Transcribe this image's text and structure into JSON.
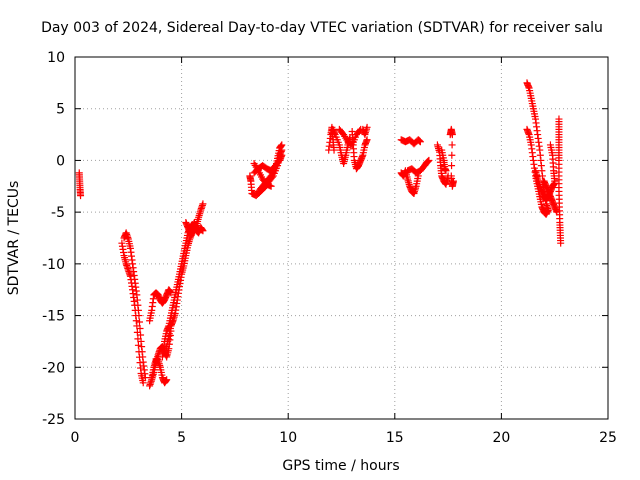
{
  "chart_data": {
    "type": "scatter",
    "title": "Day 003 of 2024, Sidereal Day-to-day VTEC variation (SDTVAR) for receiver salu",
    "xlabel": "GPS time / hours",
    "ylabel": "SDTVAR / TECUs",
    "xlim": [
      0,
      25
    ],
    "ylim": [
      -25,
      10
    ],
    "x_ticks": [
      0,
      5,
      10,
      15,
      20,
      25
    ],
    "x_tick_labels": [
      "0",
      "5",
      "10",
      "15",
      "20",
      "25"
    ],
    "y_ticks": [
      -25,
      -20,
      -15,
      -10,
      -5,
      0,
      5,
      10
    ],
    "y_tick_labels": [
      "-25",
      "-20",
      "-15",
      "-10",
      "-5",
      "0",
      "5",
      "10"
    ],
    "grid": true,
    "marker": "+",
    "color": "#ff0000",
    "tracks": [
      {
        "name": "track-1",
        "points": [
          [
            0.2,
            -1.2
          ],
          [
            0.22,
            -2.0
          ],
          [
            0.24,
            -2.8
          ],
          [
            0.26,
            -3.4
          ]
        ]
      },
      {
        "name": "track-2",
        "points": [
          [
            2.2,
            -8.0
          ],
          [
            2.3,
            -9.2
          ],
          [
            2.4,
            -10.0
          ],
          [
            2.5,
            -10.6
          ],
          [
            2.6,
            -11.2
          ],
          [
            2.7,
            -12.5
          ],
          [
            2.8,
            -14.0
          ],
          [
            2.9,
            -16.0
          ],
          [
            3.0,
            -18.5
          ],
          [
            3.1,
            -20.6
          ],
          [
            3.2,
            -21.5
          ]
        ]
      },
      {
        "name": "track-3",
        "points": [
          [
            2.3,
            -7.5
          ],
          [
            2.4,
            -7.0
          ],
          [
            2.5,
            -7.6
          ],
          [
            2.6,
            -8.5
          ],
          [
            2.7,
            -10.0
          ],
          [
            2.8,
            -11.5
          ],
          [
            2.9,
            -13.0
          ],
          [
            3.0,
            -15.0
          ],
          [
            3.1,
            -17.5
          ],
          [
            3.2,
            -19.5
          ],
          [
            3.3,
            -21.0
          ]
        ]
      },
      {
        "name": "track-4",
        "points": [
          [
            3.5,
            -21.8
          ],
          [
            3.6,
            -21.2
          ],
          [
            3.7,
            -20.5
          ],
          [
            3.8,
            -19.5
          ],
          [
            3.9,
            -18.8
          ],
          [
            4.0,
            -18.2
          ],
          [
            4.1,
            -18.0
          ],
          [
            4.2,
            -18.5
          ],
          [
            4.3,
            -19.0
          ],
          [
            4.4,
            -18.2
          ],
          [
            4.5,
            -16.5
          ]
        ]
      },
      {
        "name": "track-5",
        "points": [
          [
            3.6,
            -21.0
          ],
          [
            3.7,
            -20.0
          ],
          [
            3.8,
            -19.2
          ],
          [
            3.9,
            -19.3
          ],
          [
            4.0,
            -20.0
          ],
          [
            4.1,
            -21.0
          ],
          [
            4.2,
            -21.5
          ],
          [
            4.3,
            -21.2
          ]
        ]
      },
      {
        "name": "track-6",
        "points": [
          [
            3.5,
            -15.5
          ],
          [
            3.6,
            -14.5
          ],
          [
            3.7,
            -13.0
          ],
          [
            3.8,
            -12.8
          ],
          [
            3.9,
            -13.0
          ],
          [
            4.0,
            -13.5
          ],
          [
            4.1,
            -13.8
          ],
          [
            4.2,
            -13.5
          ],
          [
            4.3,
            -13.0
          ],
          [
            4.4,
            -12.5
          ],
          [
            4.5,
            -12.8
          ]
        ]
      },
      {
        "name": "track-7",
        "points": [
          [
            4.1,
            -19.0
          ],
          [
            4.2,
            -17.5
          ],
          [
            4.3,
            -16.5
          ],
          [
            4.4,
            -16.0
          ],
          [
            4.5,
            -15.0
          ],
          [
            4.6,
            -14.0
          ],
          [
            4.7,
            -13.0
          ],
          [
            4.8,
            -12.0
          ],
          [
            4.9,
            -11.0
          ],
          [
            5.0,
            -10.0
          ],
          [
            5.1,
            -9.0
          ],
          [
            5.2,
            -8.0
          ],
          [
            5.3,
            -7.0
          ],
          [
            5.4,
            -6.5
          ],
          [
            5.5,
            -6.2
          ]
        ]
      },
      {
        "name": "track-8",
        "points": [
          [
            4.3,
            -18.0
          ],
          [
            4.4,
            -17.0
          ],
          [
            4.5,
            -16.0
          ],
          [
            4.6,
            -15.5
          ],
          [
            4.7,
            -14.8
          ],
          [
            4.8,
            -13.5
          ],
          [
            4.9,
            -12.2
          ],
          [
            5.0,
            -11.0
          ],
          [
            5.1,
            -10.2
          ],
          [
            5.2,
            -9.2
          ],
          [
            5.3,
            -8.2
          ],
          [
            5.4,
            -7.5
          ],
          [
            5.5,
            -7.0
          ],
          [
            5.6,
            -6.8
          ],
          [
            5.7,
            -6.3
          ],
          [
            5.8,
            -5.5
          ],
          [
            5.9,
            -4.8
          ],
          [
            6.0,
            -4.2
          ]
        ]
      },
      {
        "name": "track-9",
        "points": [
          [
            5.2,
            -6.0
          ],
          [
            5.3,
            -6.5
          ],
          [
            5.4,
            -7.0
          ],
          [
            5.5,
            -6.5
          ],
          [
            5.6,
            -6.0
          ],
          [
            5.7,
            -6.8
          ],
          [
            5.8,
            -7.0
          ],
          [
            5.9,
            -6.5
          ],
          [
            6.0,
            -6.8
          ]
        ]
      },
      {
        "name": "track-10",
        "points": [
          [
            8.2,
            -1.5
          ],
          [
            8.25,
            -2.0
          ],
          [
            8.3,
            -3.2
          ],
          [
            8.5,
            -3.4
          ],
          [
            8.7,
            -3.0
          ],
          [
            8.9,
            -2.6
          ],
          [
            9.1,
            -2.0
          ],
          [
            9.3,
            -1.5
          ],
          [
            9.5,
            -0.5
          ],
          [
            9.6,
            0.5
          ],
          [
            9.7,
            1.0
          ]
        ]
      },
      {
        "name": "track-11",
        "points": [
          [
            8.4,
            -1.2
          ],
          [
            8.6,
            -0.8
          ],
          [
            8.8,
            -0.5
          ],
          [
            9.0,
            -0.8
          ],
          [
            9.2,
            -1.0
          ],
          [
            9.4,
            -0.5
          ],
          [
            9.6,
            0.0
          ],
          [
            9.7,
            0.5
          ]
        ]
      },
      {
        "name": "track-12",
        "points": [
          [
            8.6,
            -3.0
          ],
          [
            8.8,
            -2.5
          ],
          [
            9.0,
            -2.0
          ],
          [
            9.2,
            -1.5
          ],
          [
            9.4,
            -0.8
          ],
          [
            9.5,
            0.2
          ],
          [
            9.6,
            1.2
          ],
          [
            9.7,
            1.5
          ]
        ]
      },
      {
        "name": "track-13",
        "points": [
          [
            8.4,
            -0.3
          ],
          [
            8.6,
            -1.0
          ],
          [
            8.8,
            -1.8
          ],
          [
            9.0,
            -2.3
          ],
          [
            9.2,
            -2.5
          ]
        ]
      },
      {
        "name": "track-14",
        "points": [
          [
            11.9,
            1.0
          ],
          [
            12.0,
            2.5
          ],
          [
            12.05,
            3.2
          ],
          [
            12.1,
            2.0
          ],
          [
            12.15,
            1.0
          ]
        ]
      },
      {
        "name": "track-15",
        "points": [
          [
            12.1,
            3.0
          ],
          [
            12.2,
            2.5
          ],
          [
            12.4,
            1.5
          ],
          [
            12.5,
            0.5
          ],
          [
            12.6,
            -0.3
          ],
          [
            12.7,
            0.5
          ],
          [
            12.8,
            1.5
          ],
          [
            12.9,
            2.2
          ]
        ]
      },
      {
        "name": "track-16",
        "points": [
          [
            12.4,
            3.0
          ],
          [
            12.6,
            2.5
          ],
          [
            12.8,
            1.8
          ],
          [
            13.0,
            1.5
          ],
          [
            13.2,
            2.5
          ],
          [
            13.4,
            3.0
          ]
        ]
      },
      {
        "name": "track-17",
        "points": [
          [
            13.0,
            2.8
          ],
          [
            13.05,
            1.5
          ],
          [
            13.1,
            0.0
          ],
          [
            13.2,
            -0.8
          ],
          [
            13.3,
            -0.5
          ],
          [
            13.4,
            0.0
          ],
          [
            13.5,
            0.5
          ],
          [
            13.6,
            1.5
          ],
          [
            13.7,
            2.0
          ]
        ]
      },
      {
        "name": "track-18",
        "points": [
          [
            13.5,
            3.0
          ],
          [
            13.6,
            2.5
          ],
          [
            13.7,
            3.2
          ]
        ]
      },
      {
        "name": "track-19",
        "points": [
          [
            15.3,
            2.0
          ],
          [
            15.5,
            1.8
          ],
          [
            15.7,
            2.0
          ],
          [
            15.9,
            1.6
          ],
          [
            16.1,
            2.0
          ],
          [
            16.2,
            1.8
          ]
        ]
      },
      {
        "name": "track-20",
        "points": [
          [
            15.3,
            -1.2
          ],
          [
            15.4,
            -1.5
          ],
          [
            15.5,
            -1.0
          ],
          [
            15.6,
            -1.8
          ],
          [
            15.7,
            -2.5
          ],
          [
            15.8,
            -3.0
          ],
          [
            15.9,
            -3.2
          ],
          [
            16.0,
            -2.5
          ],
          [
            16.1,
            -1.5
          ]
        ]
      },
      {
        "name": "track-21",
        "points": [
          [
            15.6,
            -1.0
          ],
          [
            15.8,
            -0.8
          ],
          [
            16.0,
            -1.2
          ],
          [
            16.2,
            -1.0
          ],
          [
            16.4,
            -0.5
          ],
          [
            16.5,
            -0.2
          ],
          [
            16.6,
            0.0
          ]
        ]
      },
      {
        "name": "track-22",
        "points": [
          [
            17.0,
            1.5
          ],
          [
            17.1,
            0.8
          ],
          [
            17.15,
            -0.5
          ],
          [
            17.2,
            -1.5
          ],
          [
            17.3,
            -2.0
          ],
          [
            17.4,
            -2.3
          ],
          [
            17.5,
            -1.5
          ]
        ]
      },
      {
        "name": "track-23",
        "points": [
          [
            17.2,
            1.0
          ],
          [
            17.3,
            0.0
          ],
          [
            17.35,
            -0.8
          ],
          [
            17.4,
            -1.0
          ]
        ]
      },
      {
        "name": "track-24",
        "points": [
          [
            17.6,
            2.5
          ],
          [
            17.65,
            3.0
          ],
          [
            17.7,
            2.5
          ],
          [
            17.65,
            -1.5
          ],
          [
            17.7,
            -2.5
          ],
          [
            17.75,
            -2.0
          ]
        ]
      },
      {
        "name": "track-25",
        "points": [
          [
            21.2,
            7.5
          ],
          [
            21.3,
            7.0
          ],
          [
            21.4,
            6.0
          ],
          [
            21.5,
            5.0
          ],
          [
            21.6,
            4.0
          ],
          [
            21.7,
            2.5
          ],
          [
            21.8,
            1.0
          ],
          [
            21.9,
            -1.0
          ],
          [
            22.0,
            -3.0
          ],
          [
            22.1,
            -4.2
          ],
          [
            22.2,
            -4.8
          ]
        ]
      },
      {
        "name": "track-26",
        "points": [
          [
            21.2,
            3.0
          ],
          [
            21.3,
            2.5
          ],
          [
            21.4,
            1.5
          ],
          [
            21.5,
            0.0
          ],
          [
            21.6,
            -1.5
          ],
          [
            21.7,
            -2.5
          ],
          [
            21.8,
            -3.5
          ],
          [
            21.9,
            -4.5
          ],
          [
            22.0,
            -5.0
          ],
          [
            22.1,
            -5.2
          ],
          [
            22.2,
            -4.8
          ]
        ]
      },
      {
        "name": "track-27",
        "points": [
          [
            21.6,
            -1.0
          ],
          [
            21.7,
            -1.8
          ],
          [
            21.8,
            -2.5
          ],
          [
            21.9,
            -3.0
          ],
          [
            22.0,
            -3.5
          ],
          [
            22.1,
            -3.8
          ],
          [
            22.2,
            -3.5
          ],
          [
            22.3,
            -3.0
          ],
          [
            22.4,
            -2.5
          ],
          [
            22.5,
            -2.2
          ]
        ]
      },
      {
        "name": "track-28",
        "points": [
          [
            22.0,
            -2.0
          ],
          [
            22.1,
            -2.5
          ],
          [
            22.2,
            -3.0
          ],
          [
            22.3,
            -3.5
          ],
          [
            22.4,
            -4.0
          ],
          [
            22.5,
            -4.5
          ],
          [
            22.6,
            -5.0
          ]
        ]
      },
      {
        "name": "track-29",
        "points": [
          [
            22.3,
            1.5
          ],
          [
            22.4,
            0.5
          ],
          [
            22.45,
            -1.0
          ],
          [
            22.5,
            -2.0
          ]
        ]
      },
      {
        "name": "track-30",
        "points": [
          [
            22.7,
            4.0
          ],
          [
            22.7,
            3.0
          ],
          [
            22.7,
            2.0
          ],
          [
            22.7,
            1.0
          ],
          [
            22.7,
            0.0
          ],
          [
            22.7,
            -1.5
          ],
          [
            22.7,
            -3.0
          ],
          [
            22.72,
            -4.5
          ],
          [
            22.74,
            -6.0
          ],
          [
            22.76,
            -7.0
          ],
          [
            22.78,
            -8.0
          ]
        ]
      }
    ]
  }
}
